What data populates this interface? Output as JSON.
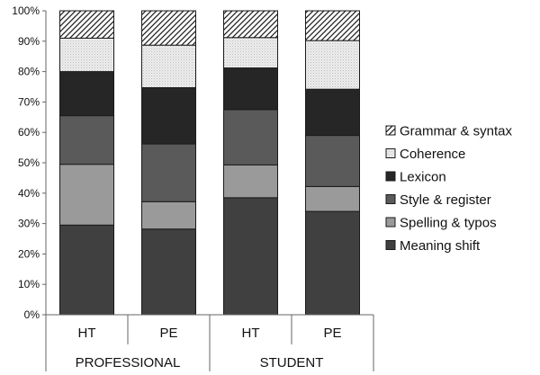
{
  "chart_data": {
    "type": "bar",
    "stacked": true,
    "percent_stacked": true,
    "categories": [
      "HT",
      "PE",
      "HT",
      "PE"
    ],
    "groups": [
      {
        "label": "PROFESSIONAL",
        "span": [
          0,
          1
        ]
      },
      {
        "label": "STUDENT",
        "span": [
          2,
          3
        ]
      }
    ],
    "series": [
      {
        "name": "Meaning shift",
        "values": [
          29.5,
          28.2,
          38.5,
          34.0
        ],
        "color": "#404040",
        "pattern": "solid"
      },
      {
        "name": "Spelling & typos",
        "values": [
          20.0,
          9.0,
          10.8,
          8.2
        ],
        "color": "#9a9a9a",
        "pattern": "solid"
      },
      {
        "name": "Style & register",
        "values": [
          16.0,
          19.0,
          18.2,
          16.8
        ],
        "color": "#5a5a5a",
        "pattern": "solid"
      },
      {
        "name": "Lexicon",
        "values": [
          14.5,
          18.5,
          13.7,
          15.2
        ],
        "color": "#262626",
        "pattern": "solid"
      },
      {
        "name": "Coherence",
        "values": [
          11.0,
          14.0,
          10.0,
          16.0
        ],
        "color": "#e6e6e6",
        "pattern": "dots"
      },
      {
        "name": "Grammar & syntax",
        "values": [
          9.0,
          11.3,
          8.8,
          9.8
        ],
        "color": "#ffffff",
        "pattern": "hatch"
      }
    ],
    "y_ticks": [
      "0%",
      "10%",
      "20%",
      "30%",
      "40%",
      "50%",
      "60%",
      "70%",
      "80%",
      "90%",
      "100%"
    ],
    "ylim": [
      0,
      100
    ],
    "grid": false,
    "legend_position": "right",
    "title": "",
    "xlabel": "",
    "ylabel": ""
  }
}
